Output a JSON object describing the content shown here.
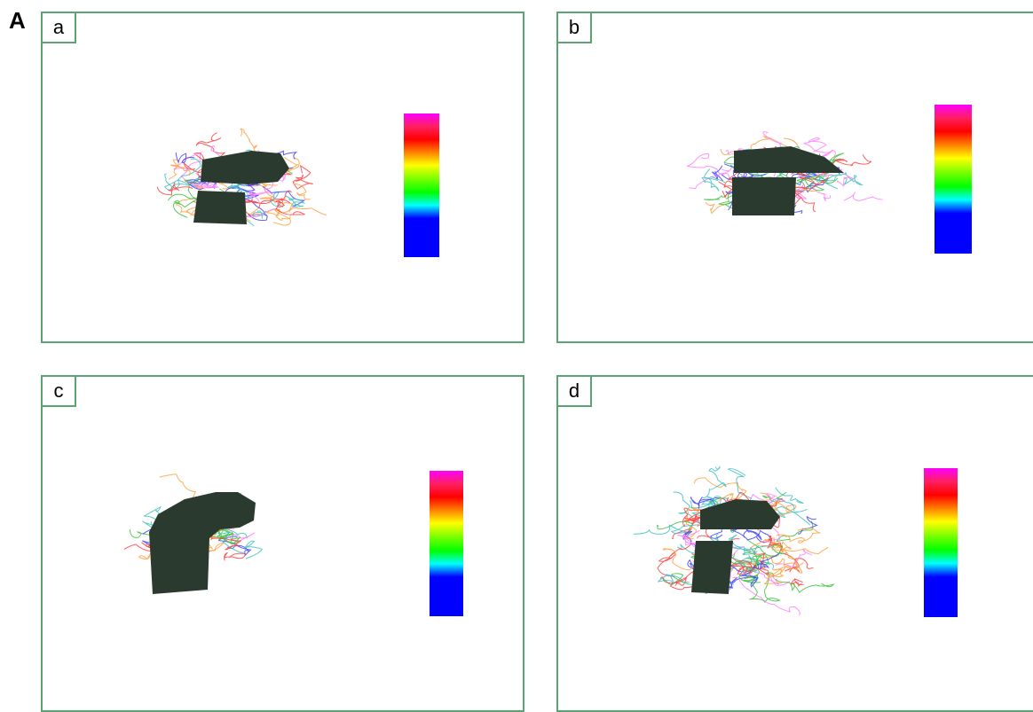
{
  "figure_label": "A",
  "panels": [
    {
      "label": "a"
    },
    {
      "label": "b"
    },
    {
      "label": "c"
    },
    {
      "label": "d"
    }
  ],
  "colorbar_colors": [
    "#ff00ff",
    "#ff2060",
    "#ff0000",
    "#ff8000",
    "#ffff00",
    "#80ff00",
    "#00ff00",
    "#00ffff",
    "#0000ff",
    "#0000ff",
    "#0000ff",
    "#0000ff"
  ],
  "fiber_colors": [
    "#ff4040",
    "#40c040",
    "#4040ff",
    "#ff80ff",
    "#ffa040",
    "#40c0c0"
  ],
  "structure_color": "#2b3a2e"
}
